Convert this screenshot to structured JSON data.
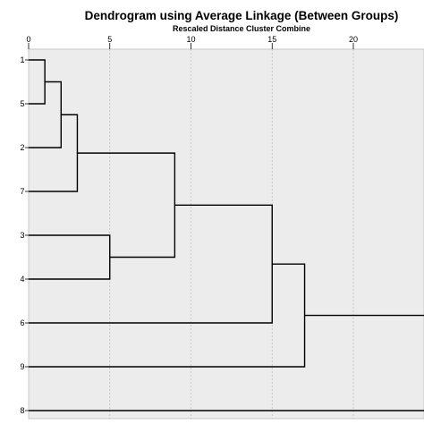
{
  "chart_data": {
    "type": "dendrogram",
    "title": "Dendrogram using Average Linkage (Between Groups)",
    "xlabel": "Rescaled Distance Cluster Combine",
    "x_ticks": [
      "0",
      "5",
      "10",
      "15",
      "20"
    ],
    "x_tick_values": [
      0,
      5,
      10,
      15,
      20
    ],
    "xlim": [
      0,
      25
    ],
    "grid": "vertical dashed",
    "plot_background": "#ececec",
    "line_color": "#000000",
    "leaf_order": [
      "1",
      "5",
      "2",
      "7",
      "3",
      "4",
      "6",
      "9",
      "8"
    ],
    "merges": [
      {
        "id": "m1",
        "children": [
          "1",
          "5"
        ],
        "distance": 1
      },
      {
        "id": "m2",
        "children": [
          "m1",
          "2"
        ],
        "distance": 2
      },
      {
        "id": "m3",
        "children": [
          "m2",
          "7"
        ],
        "distance": 3
      },
      {
        "id": "m4",
        "children": [
          "3",
          "4"
        ],
        "distance": 5
      },
      {
        "id": "m5",
        "children": [
          "m3",
          "m4"
        ],
        "distance": 9
      },
      {
        "id": "m6",
        "children": [
          "m5",
          "6"
        ],
        "distance": 15
      },
      {
        "id": "m7",
        "children": [
          "m6",
          "9"
        ],
        "distance": 17
      },
      {
        "id": "m8",
        "children": [
          "m7",
          "8"
        ],
        "distance": 25
      }
    ]
  }
}
